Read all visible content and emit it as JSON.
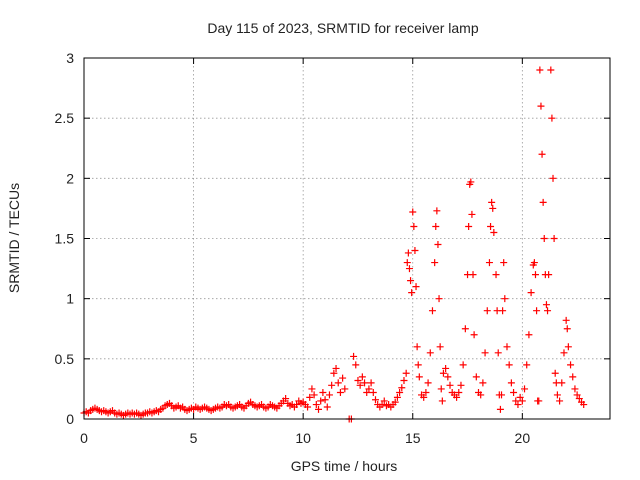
{
  "chart_data": {
    "type": "scatter",
    "title": "Day 115 of 2023, SRMTID for receiver lamp",
    "xlabel": "GPS time / hours",
    "ylabel": "SRMTID / TECUs",
    "xlim": [
      0,
      24
    ],
    "ylim": [
      0,
      3
    ],
    "x_ticks": [
      0,
      5,
      10,
      15,
      20
    ],
    "x_tick_labels": [
      "0",
      "5",
      "10",
      "15",
      "20"
    ],
    "y_ticks": [
      0,
      0.5,
      1,
      1.5,
      2,
      2.5,
      3
    ],
    "y_tick_labels": [
      "0",
      "0.5",
      "1",
      "1.5",
      "2",
      "2.5",
      "3"
    ],
    "grid": true,
    "marker": "+",
    "series": [
      {
        "name": "SRMTID",
        "color": "#ff0000",
        "points": [
          [
            0.0,
            0.05
          ],
          [
            0.1,
            0.06
          ],
          [
            0.2,
            0.05
          ],
          [
            0.3,
            0.07
          ],
          [
            0.4,
            0.08
          ],
          [
            0.5,
            0.09
          ],
          [
            0.6,
            0.08
          ],
          [
            0.7,
            0.07
          ],
          [
            0.8,
            0.06
          ],
          [
            0.9,
            0.07
          ],
          [
            1.0,
            0.06
          ],
          [
            1.1,
            0.05
          ],
          [
            1.2,
            0.06
          ],
          [
            1.3,
            0.07
          ],
          [
            1.4,
            0.05
          ],
          [
            1.5,
            0.04
          ],
          [
            1.6,
            0.05
          ],
          [
            1.7,
            0.04
          ],
          [
            1.8,
            0.03
          ],
          [
            1.9,
            0.04
          ],
          [
            2.0,
            0.05
          ],
          [
            2.1,
            0.04
          ],
          [
            2.2,
            0.05
          ],
          [
            2.3,
            0.04
          ],
          [
            2.4,
            0.05
          ],
          [
            2.5,
            0.04
          ],
          [
            2.6,
            0.03
          ],
          [
            2.7,
            0.04
          ],
          [
            2.8,
            0.05
          ],
          [
            2.9,
            0.05
          ],
          [
            3.0,
            0.06
          ],
          [
            3.1,
            0.05
          ],
          [
            3.2,
            0.06
          ],
          [
            3.3,
            0.07
          ],
          [
            3.4,
            0.06
          ],
          [
            3.5,
            0.08
          ],
          [
            3.6,
            0.09
          ],
          [
            3.7,
            0.11
          ],
          [
            3.8,
            0.12
          ],
          [
            3.9,
            0.13
          ],
          [
            4.0,
            0.11
          ],
          [
            4.1,
            0.09
          ],
          [
            4.2,
            0.1
          ],
          [
            4.3,
            0.11
          ],
          [
            4.4,
            0.09
          ],
          [
            4.5,
            0.1
          ],
          [
            4.6,
            0.08
          ],
          [
            4.7,
            0.07
          ],
          [
            4.8,
            0.08
          ],
          [
            4.9,
            0.09
          ],
          [
            5.0,
            0.08
          ],
          [
            5.1,
            0.1
          ],
          [
            5.2,
            0.09
          ],
          [
            5.3,
            0.08
          ],
          [
            5.4,
            0.09
          ],
          [
            5.5,
            0.1
          ],
          [
            5.6,
            0.09
          ],
          [
            5.7,
            0.08
          ],
          [
            5.8,
            0.07
          ],
          [
            5.9,
            0.08
          ],
          [
            6.0,
            0.09
          ],
          [
            6.1,
            0.1
          ],
          [
            6.2,
            0.09
          ],
          [
            6.3,
            0.1
          ],
          [
            6.4,
            0.12
          ],
          [
            6.5,
            0.11
          ],
          [
            6.6,
            0.12
          ],
          [
            6.7,
            0.1
          ],
          [
            6.8,
            0.09
          ],
          [
            6.9,
            0.1
          ],
          [
            7.0,
            0.11
          ],
          [
            7.1,
            0.12
          ],
          [
            7.2,
            0.1
          ],
          [
            7.3,
            0.09
          ],
          [
            7.4,
            0.11
          ],
          [
            7.5,
            0.13
          ],
          [
            7.6,
            0.14
          ],
          [
            7.7,
            0.12
          ],
          [
            7.8,
            0.11
          ],
          [
            7.9,
            0.1
          ],
          [
            8.0,
            0.11
          ],
          [
            8.1,
            0.12
          ],
          [
            8.2,
            0.1
          ],
          [
            8.3,
            0.09
          ],
          [
            8.4,
            0.1
          ],
          [
            8.5,
            0.12
          ],
          [
            8.6,
            0.11
          ],
          [
            8.7,
            0.1
          ],
          [
            8.8,
            0.09
          ],
          [
            8.9,
            0.11
          ],
          [
            9.0,
            0.13
          ],
          [
            9.1,
            0.15
          ],
          [
            9.2,
            0.17
          ],
          [
            9.3,
            0.13
          ],
          [
            9.4,
            0.11
          ],
          [
            9.5,
            0.12
          ],
          [
            9.6,
            0.1
          ],
          [
            9.7,
            0.12
          ],
          [
            9.8,
            0.15
          ],
          [
            9.9,
            0.13
          ],
          [
            10.0,
            0.14
          ],
          [
            10.1,
            0.12
          ],
          [
            10.2,
            0.1
          ],
          [
            10.3,
            0.18
          ],
          [
            10.4,
            0.25
          ],
          [
            10.5,
            0.2
          ],
          [
            10.6,
            0.12
          ],
          [
            10.7,
            0.08
          ],
          [
            10.8,
            0.15
          ],
          [
            10.9,
            0.22
          ],
          [
            11.0,
            0.16
          ],
          [
            11.1,
            0.1
          ],
          [
            11.2,
            0.2
          ],
          [
            11.3,
            0.28
          ],
          [
            11.4,
            0.38
          ],
          [
            11.5,
            0.42
          ],
          [
            11.6,
            0.3
          ],
          [
            11.7,
            0.22
          ],
          [
            11.8,
            0.34
          ],
          [
            11.9,
            0.25
          ],
          [
            12.1,
            0.0
          ],
          [
            12.2,
            0.0
          ],
          [
            12.3,
            0.52
          ],
          [
            12.4,
            0.45
          ],
          [
            12.5,
            0.32
          ],
          [
            12.6,
            0.28
          ],
          [
            12.7,
            0.35
          ],
          [
            12.8,
            0.3
          ],
          [
            12.9,
            0.22
          ],
          [
            13.0,
            0.25
          ],
          [
            13.1,
            0.3
          ],
          [
            13.2,
            0.22
          ],
          [
            13.3,
            0.16
          ],
          [
            13.4,
            0.12
          ],
          [
            13.5,
            0.1
          ],
          [
            13.6,
            0.12
          ],
          [
            13.7,
            0.15
          ],
          [
            13.8,
            0.11
          ],
          [
            13.9,
            0.12
          ],
          [
            14.0,
            0.1
          ],
          [
            14.1,
            0.12
          ],
          [
            14.2,
            0.14
          ],
          [
            14.3,
            0.18
          ],
          [
            14.4,
            0.22
          ],
          [
            14.5,
            0.26
          ],
          [
            14.6,
            0.32
          ],
          [
            14.7,
            0.38
          ],
          [
            14.75,
            1.3
          ],
          [
            14.8,
            1.38
          ],
          [
            14.85,
            1.25
          ],
          [
            14.9,
            1.15
          ],
          [
            14.95,
            1.05
          ],
          [
            15.0,
            1.72
          ],
          [
            15.05,
            1.6
          ],
          [
            15.1,
            1.4
          ],
          [
            15.15,
            1.1
          ],
          [
            15.2,
            0.6
          ],
          [
            15.25,
            0.45
          ],
          [
            15.3,
            0.35
          ],
          [
            15.4,
            0.2
          ],
          [
            15.5,
            0.18
          ],
          [
            15.6,
            0.22
          ],
          [
            15.7,
            0.3
          ],
          [
            15.8,
            0.55
          ],
          [
            15.9,
            0.9
          ],
          [
            16.0,
            1.3
          ],
          [
            16.05,
            1.6
          ],
          [
            16.1,
            1.73
          ],
          [
            16.15,
            1.45
          ],
          [
            16.2,
            1.0
          ],
          [
            16.25,
            0.6
          ],
          [
            16.3,
            0.25
          ],
          [
            16.35,
            0.15
          ],
          [
            16.4,
            0.38
          ],
          [
            16.5,
            0.42
          ],
          [
            16.6,
            0.35
          ],
          [
            16.7,
            0.28
          ],
          [
            16.8,
            0.22
          ],
          [
            16.9,
            0.2
          ],
          [
            17.0,
            0.18
          ],
          [
            17.1,
            0.22
          ],
          [
            17.2,
            0.28
          ],
          [
            17.3,
            0.45
          ],
          [
            17.4,
            0.75
          ],
          [
            17.5,
            1.2
          ],
          [
            17.55,
            1.6
          ],
          [
            17.6,
            1.95
          ],
          [
            17.65,
            1.97
          ],
          [
            17.7,
            1.7
          ],
          [
            17.75,
            1.2
          ],
          [
            17.8,
            0.7
          ],
          [
            17.9,
            0.35
          ],
          [
            18.0,
            0.22
          ],
          [
            18.1,
            0.2
          ],
          [
            18.2,
            0.3
          ],
          [
            18.3,
            0.55
          ],
          [
            18.4,
            0.9
          ],
          [
            18.5,
            1.3
          ],
          [
            18.55,
            1.6
          ],
          [
            18.6,
            1.8
          ],
          [
            18.65,
            1.75
          ],
          [
            18.7,
            1.55
          ],
          [
            18.8,
            1.2
          ],
          [
            18.85,
            0.9
          ],
          [
            18.9,
            0.55
          ],
          [
            18.95,
            0.2
          ],
          [
            19.0,
            0.08
          ],
          [
            19.05,
            0.2
          ],
          [
            19.1,
            0.9
          ],
          [
            19.15,
            1.3
          ],
          [
            19.2,
            1.0
          ],
          [
            19.3,
            0.6
          ],
          [
            19.4,
            0.45
          ],
          [
            19.5,
            0.3
          ],
          [
            19.6,
            0.22
          ],
          [
            19.7,
            0.15
          ],
          [
            19.8,
            0.12
          ],
          [
            19.9,
            0.18
          ],
          [
            20.0,
            0.15
          ],
          [
            20.1,
            0.25
          ],
          [
            20.2,
            0.45
          ],
          [
            20.3,
            0.7
          ],
          [
            20.4,
            1.05
          ],
          [
            20.5,
            1.28
          ],
          [
            20.55,
            1.3
          ],
          [
            20.6,
            1.2
          ],
          [
            20.65,
            0.9
          ],
          [
            20.7,
            0.15
          ],
          [
            20.75,
            0.15
          ],
          [
            20.8,
            2.9
          ],
          [
            20.85,
            2.6
          ],
          [
            20.9,
            2.2
          ],
          [
            20.95,
            1.8
          ],
          [
            21.0,
            1.5
          ],
          [
            21.05,
            1.2
          ],
          [
            21.1,
            0.95
          ],
          [
            21.15,
            0.9
          ],
          [
            21.2,
            1.2
          ],
          [
            21.3,
            2.9
          ],
          [
            21.35,
            2.5
          ],
          [
            21.4,
            2.0
          ],
          [
            21.45,
            1.5
          ],
          [
            21.5,
            0.38
          ],
          [
            21.55,
            0.3
          ],
          [
            21.6,
            0.2
          ],
          [
            21.7,
            0.15
          ],
          [
            21.8,
            0.3
          ],
          [
            21.9,
            0.55
          ],
          [
            22.0,
            0.82
          ],
          [
            22.05,
            0.75
          ],
          [
            22.1,
            0.6
          ],
          [
            22.2,
            0.45
          ],
          [
            22.3,
            0.35
          ],
          [
            22.4,
            0.25
          ],
          [
            22.5,
            0.2
          ],
          [
            22.6,
            0.17
          ],
          [
            22.7,
            0.14
          ],
          [
            22.8,
            0.12
          ]
        ]
      }
    ]
  }
}
